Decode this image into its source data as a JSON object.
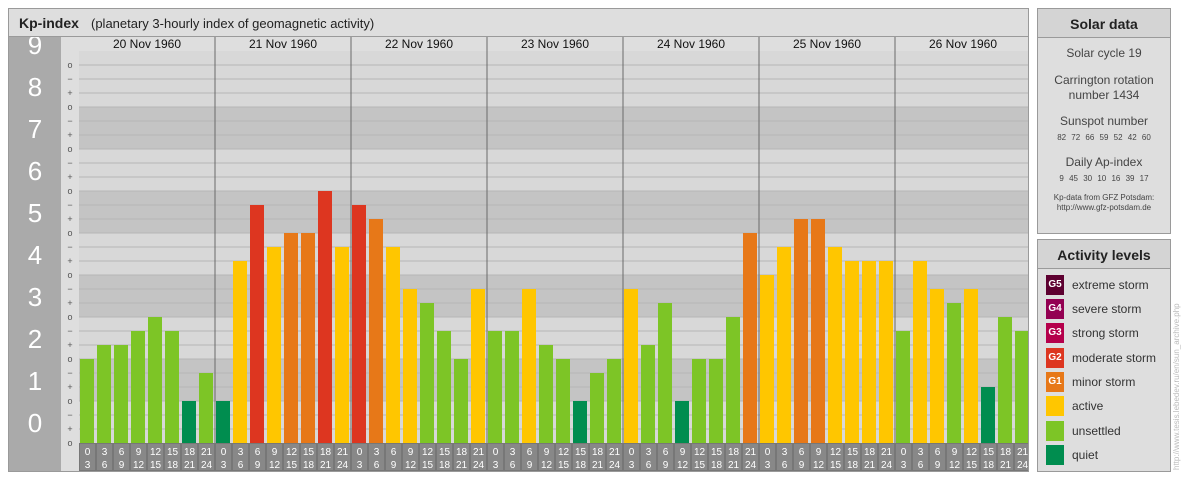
{
  "header": {
    "title": "Kp-index",
    "subtitle": "(planetary 3-hourly index of geomagnetic activity)"
  },
  "chart_data": {
    "type": "bar",
    "y_axis_labels": [
      "0",
      "1",
      "2",
      "3",
      "4",
      "5",
      "6",
      "7",
      "8",
      "9"
    ],
    "sub_tick_labels": [
      "+",
      "o",
      "−"
    ],
    "ylim": [
      0,
      9.3333
    ],
    "days": [
      "20 Nov 1960",
      "21 Nov 1960",
      "22 Nov 1960",
      "23 Nov 1960",
      "24 Nov 1960",
      "25 Nov 1960",
      "26 Nov 1960"
    ],
    "interval_starts": [
      "0",
      "3",
      "6",
      "9",
      "12",
      "15",
      "18",
      "21"
    ],
    "interval_ends": [
      "3",
      "6",
      "9",
      "12",
      "15",
      "18",
      "21",
      "24"
    ],
    "series": [
      {
        "values": [
          2.0,
          2.333,
          2.333,
          2.667,
          3.0,
          2.667,
          1.0,
          1.667,
          1.0,
          4.333,
          5.667,
          4.667,
          5.0,
          5.0,
          6.0,
          4.667,
          5.667,
          5.333,
          4.667,
          3.667,
          3.333,
          2.667,
          2.0,
          3.667,
          2.667,
          2.667,
          3.667,
          2.333,
          2.0,
          1.0,
          1.667,
          2.0,
          3.667,
          2.333,
          3.333,
          1.0,
          2.0,
          2.0,
          3.0,
          5.0,
          4.0,
          4.667,
          5.333,
          5.333,
          4.667,
          4.333,
          4.333,
          4.333,
          2.667,
          4.333,
          3.667,
          3.333,
          3.667,
          1.333,
          3.0,
          2.667
        ]
      }
    ],
    "colors": {
      "quiet": "#008d4f",
      "unsettled": "#7dc526",
      "active": "#ffc600",
      "G1": "#e77818",
      "G2": "#dd3620",
      "G3": "#b5004b",
      "G4": "#930052",
      "G5": "#5d0030"
    },
    "band_colors": [
      "#c4c4c4",
      "#d8d8d8"
    ],
    "axis_bg": "#aaaaaa",
    "axis_text": "#ffffff",
    "interval_bg": "#777777"
  },
  "solar": {
    "title": "Solar data",
    "cycle": "Solar cycle 19",
    "carrington_line1": "Carrington rotation",
    "carrington_line2": "number 1434",
    "sunspot_title": "Sunspot number",
    "sunspot_values": "82 72 66 59 52 42 60",
    "ap_title": "Daily Ap-index",
    "ap_values": "9 45 30 10 16 39 17",
    "credit_line1": "Kp-data from GFZ Potsdam:",
    "credit_line2": "http://www.gfz-potsdam.de"
  },
  "levels": {
    "title": "Activity levels",
    "items": [
      {
        "code": "G5",
        "label": "extreme storm",
        "color": "#5d0030"
      },
      {
        "code": "G4",
        "label": "severe storm",
        "color": "#930052"
      },
      {
        "code": "G3",
        "label": "strong storm",
        "color": "#b5004b"
      },
      {
        "code": "G2",
        "label": "moderate storm",
        "color": "#dd3620"
      },
      {
        "code": "G1",
        "label": "minor storm",
        "color": "#e77818"
      },
      {
        "code": "",
        "label": "active",
        "color": "#ffc600"
      },
      {
        "code": "",
        "label": "unsettled",
        "color": "#7dc526"
      },
      {
        "code": "",
        "label": "quiet",
        "color": "#008d4f"
      }
    ]
  },
  "watermark": "http://www.tesis.lebedev.ru/en/sun_archive.php"
}
